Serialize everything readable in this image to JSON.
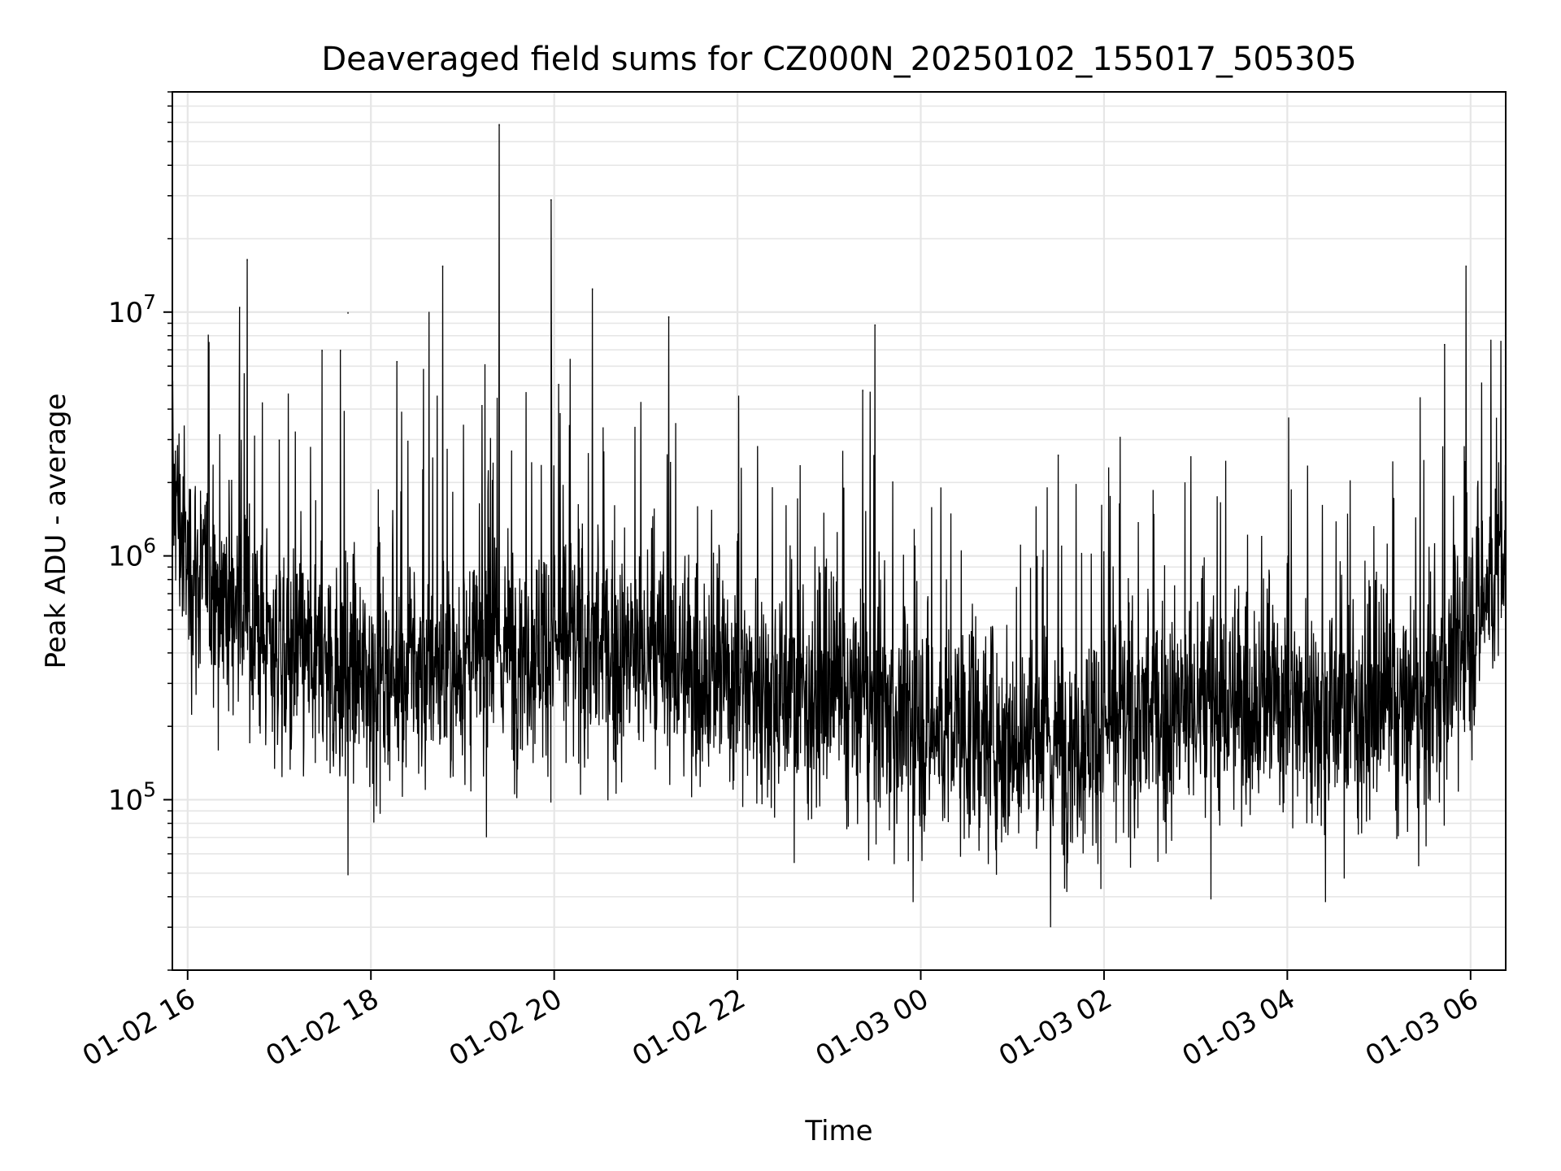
{
  "chart_data": {
    "type": "line",
    "title": "Deaveraged field sums for CZ000N_20250102_155017_505305",
    "xlabel": "Time",
    "ylabel": "Peak ADU - average",
    "y_scale": "log",
    "ylim": [
      20000,
      80000000
    ],
    "xlim": [
      "2025-01-02 15:50",
      "2025-01-03 06:23"
    ],
    "x_tick_labels": [
      "01-02 16",
      "01-02 18",
      "01-02 20",
      "01-02 22",
      "01-03 00",
      "01-03 02",
      "01-03 04",
      "01-03 06"
    ],
    "y_tick_labels": [
      {
        "base": "10",
        "exp": "5",
        "value": 100000
      },
      {
        "base": "10",
        "exp": "6",
        "value": 1000000
      },
      {
        "base": "10",
        "exp": "7",
        "value": 10000000
      }
    ],
    "grid": true,
    "line_color": "#000000",
    "series": [
      {
        "x": [
          "2025-01-02 15:50",
          "2025-01-02 16:00",
          "2025-01-02 16:30",
          "2025-01-02 17:00",
          "2025-01-02 17:30",
          "2025-01-02 18:00",
          "2025-01-02 18:30",
          "2025-01-02 19:00",
          "2025-01-02 19:30",
          "2025-01-02 20:00",
          "2025-01-02 20:30",
          "2025-01-02 21:00",
          "2025-01-02 21:30",
          "2025-01-02 22:00",
          "2025-01-02 22:30",
          "2025-01-02 23:00",
          "2025-01-02 23:30",
          "2025-01-03 00:00",
          "2025-01-03 00:30",
          "2025-01-03 01:00",
          "2025-01-03 01:30",
          "2025-01-03 02:00",
          "2025-01-03 02:30",
          "2025-01-03 03:00",
          "2025-01-03 03:30",
          "2025-01-03 04:00",
          "2025-01-03 04:30",
          "2025-01-03 05:00",
          "2025-01-03 05:30",
          "2025-01-03 06:00",
          "2025-01-03 06:23"
        ],
        "values": [
          2000000,
          900000,
          650000,
          400000,
          350000,
          320000,
          330000,
          350000,
          420000,
          450000,
          400000,
          380000,
          330000,
          320000,
          280000,
          260000,
          230000,
          200000,
          190000,
          180000,
          170000,
          200000,
          220000,
          230000,
          250000,
          260000,
          240000,
          230000,
          220000,
          500000,
          1100000
        ]
      }
    ],
    "spikes": [
      {
        "x": "2025-01-02 15:52",
        "value": 2700000
      },
      {
        "x": "2025-01-02 16:34",
        "value": 10500000
      },
      {
        "x": "2025-01-02 16:39",
        "value": 16500000
      },
      {
        "x": "2025-01-02 17:00",
        "value": 3000000
      },
      {
        "x": "2025-01-02 17:28",
        "value": 7000000
      },
      {
        "x": "2025-01-02 17:40",
        "value": 7000000
      },
      {
        "x": "2025-01-02 17:45",
        "value": 10000000
      },
      {
        "x": "2025-01-02 18:17",
        "value": 6300000
      },
      {
        "x": "2025-01-02 18:47",
        "value": 15500000
      },
      {
        "x": "2025-01-02 19:24",
        "value": 59000000
      },
      {
        "x": "2025-01-02 19:58",
        "value": 29000000
      },
      {
        "x": "2025-01-02 20:25",
        "value": 12500000
      },
      {
        "x": "2025-01-02 21:15",
        "value": 9600000
      },
      {
        "x": "2025-01-02 23:30",
        "value": 8900000
      },
      {
        "x": "2025-01-02 23:22",
        "value": 4800000
      },
      {
        "x": "2025-01-03 01:30",
        "value": 2600000
      },
      {
        "x": "2025-01-03 05:57",
        "value": 15500000
      },
      {
        "x": "2025-01-03 05:43",
        "value": 7400000
      }
    ],
    "minima": [
      {
        "x": "2025-01-02 17:45",
        "value": 49000
      },
      {
        "x": "2025-01-02 23:55",
        "value": 38000
      },
      {
        "x": "2025-01-03 01:25",
        "value": 30000
      },
      {
        "x": "2025-01-03 03:10",
        "value": 39000
      },
      {
        "x": "2025-01-03 04:25",
        "value": 38000
      }
    ]
  }
}
